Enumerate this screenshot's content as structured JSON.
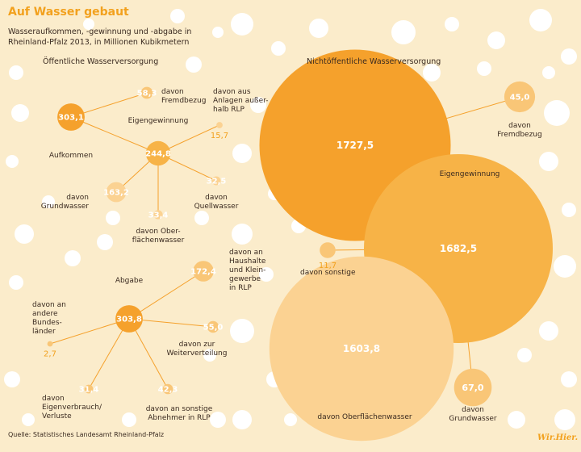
{
  "header": {
    "title": "Auf Wasser gebaut",
    "subtitle": "Wasseraufkommen, -gewinnung und -abgabe in Rheinland-Pfalz 2013, in Millionen Kubikmetern"
  },
  "footer": {
    "source": "Quelle: Statistisches Landesamt Rheinland-Pfalz",
    "brand": "Wir.Hier."
  },
  "colors": {
    "background": "#fbeccb",
    "dots": "#ffffff",
    "dark_orange": "#f5a12c",
    "medium_orange": "#f7b347",
    "light_orange": "#f9c677",
    "pale_orange": "#fbd292",
    "text": "#3a2a20",
    "accent_text": "#f2a11e"
  },
  "chart_data": {
    "type": "bubble",
    "unit": "Millionen Kubikmeter",
    "sections": [
      {
        "label": "Öffentliche Wasserversorgung",
        "groups": [
          {
            "name": "Aufkommen",
            "nodes": [
              {
                "id": "aufkommen",
                "label": "Aufkommen",
                "value": 303.1,
                "value_text": "303,1",
                "tone": "dark"
              },
              {
                "id": "fremdbezug",
                "label": "davon Fremdbezug",
                "value": 58.3,
                "value_text": "58,3",
                "tone": "light"
              },
              {
                "id": "eigengewinnung",
                "label": "Eigengewinnung",
                "value": 244.8,
                "value_text": "244,8",
                "tone": "medium"
              },
              {
                "id": "ausserhalb",
                "label": "davon aus Anlagen außerhalb RLP",
                "value": 15.7,
                "value_text": "15,7",
                "tone": "pale"
              },
              {
                "id": "grundwasser",
                "label": "davon Grundwasser",
                "value": 163.2,
                "value_text": "163,2",
                "tone": "pale"
              },
              {
                "id": "quellwasser",
                "label": "davon Quellwasser",
                "value": 32.5,
                "value_text": "32,5",
                "tone": "pale"
              },
              {
                "id": "oberflaechenwasser",
                "label": "davon Oberflächenwasser",
                "value": 33.4,
                "value_text": "33,4",
                "tone": "pale"
              }
            ]
          },
          {
            "name": "Abgabe",
            "nodes": [
              {
                "id": "abgabe",
                "label": "Abgabe",
                "value": 303.8,
                "value_text": "303,8",
                "tone": "dark"
              },
              {
                "id": "haushalte",
                "label": "davon an Haushalte und Kleingewerbe in RLP",
                "value": 172.4,
                "value_text": "172,4",
                "tone": "light"
              },
              {
                "id": "bundeslaender",
                "label": "davon an andere Bundesländer",
                "value": 2.7,
                "value_text": "2,7",
                "tone": "light"
              },
              {
                "id": "weiterverteilung",
                "label": "davon zur Weiterverteilung",
                "value": 55.0,
                "value_text": "55,0",
                "tone": "light"
              },
              {
                "id": "eigenverbrauch",
                "label": "davon Eigenverbrauch/Verluste",
                "value": 31.4,
                "value_text": "31,4",
                "tone": "light"
              },
              {
                "id": "sonstige_abnehmer",
                "label": "davon an sonstige Abnehmer in RLP",
                "value": 42.3,
                "value_text": "42,3",
                "tone": "light"
              }
            ]
          }
        ]
      },
      {
        "label": "Nichtöffentliche Wasserversorgung",
        "groups": [
          {
            "name": "Aufkommen",
            "nodes": [
              {
                "id": "nw_aufkommen",
                "label": "",
                "value": 1727.5,
                "value_text": "1727,5",
                "tone": "dark"
              },
              {
                "id": "nw_fremdbezug",
                "label": "davon Fremdbezug",
                "value": 45.0,
                "value_text": "45,0",
                "tone": "light"
              },
              {
                "id": "nw_eigengewinnung",
                "label": "Eigengewinnung",
                "value": 1682.5,
                "value_text": "1682,5",
                "tone": "medium"
              },
              {
                "id": "nw_sonstige",
                "label": "davon sonstige",
                "value": 11.7,
                "value_text": "11,7",
                "tone": "light"
              },
              {
                "id": "nw_oberflaechenwasser",
                "label": "davon Oberflächenwasser",
                "value": 1603.8,
                "value_text": "1603,8",
                "tone": "pale"
              },
              {
                "id": "nw_grundwasser",
                "label": "davon Grundwasser",
                "value": 67.0,
                "value_text": "67,0",
                "tone": "light"
              }
            ]
          }
        ]
      }
    ],
    "links": [
      [
        "aufkommen",
        "fremdbezug"
      ],
      [
        "aufkommen",
        "eigengewinnung"
      ],
      [
        "eigengewinnung",
        "ausserhalb"
      ],
      [
        "eigengewinnung",
        "grundwasser"
      ],
      [
        "eigengewinnung",
        "quellwasser"
      ],
      [
        "eigengewinnung",
        "oberflaechenwasser"
      ],
      [
        "abgabe",
        "haushalte"
      ],
      [
        "abgabe",
        "bundeslaender"
      ],
      [
        "abgabe",
        "weiterverteilung"
      ],
      [
        "abgabe",
        "eigenverbrauch"
      ],
      [
        "abgabe",
        "sonstige_abnehmer"
      ],
      [
        "nw_aufkommen",
        "nw_fremdbezug"
      ],
      [
        "nw_aufkommen",
        "nw_eigengewinnung"
      ],
      [
        "nw_eigengewinnung",
        "nw_sonstige"
      ],
      [
        "nw_eigengewinnung",
        "nw_oberflaechenwasser"
      ],
      [
        "nw_eigengewinnung",
        "nw_grundwasser"
      ]
    ]
  }
}
